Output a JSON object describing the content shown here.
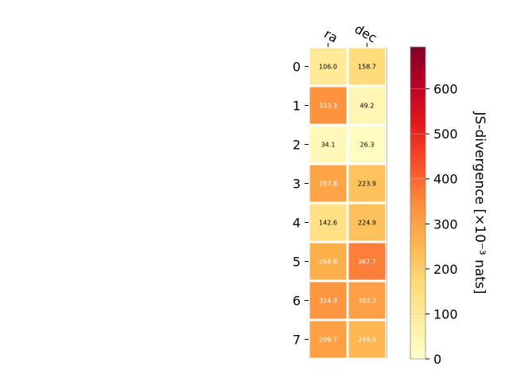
{
  "chart_data": {
    "type": "heatmap",
    "columns": [
      "ra",
      "dec"
    ],
    "rows": [
      "0",
      "1",
      "2",
      "3",
      "4",
      "5",
      "6",
      "7"
    ],
    "values": [
      [
        106.0,
        158.7
      ],
      [
        333.3,
        49.2
      ],
      [
        34.1,
        26.3
      ],
      [
        287.8,
        223.9
      ],
      [
        142.6,
        224.9
      ],
      [
        264.9,
        367.7
      ],
      [
        324.9,
        303.3
      ],
      [
        299.7,
        248.9
      ]
    ],
    "cell_labels": [
      [
        "106.0",
        "158.7"
      ],
      [
        "333.3",
        "49.2"
      ],
      [
        "34.1",
        "26.3"
      ],
      [
        "287.8",
        "223.9"
      ],
      [
        "142.6",
        "224.9"
      ],
      [
        "264.9",
        "367.7"
      ],
      [
        "324.9",
        "303.3"
      ],
      [
        "299.7",
        "248.9"
      ]
    ],
    "colorbar": {
      "label": "JS-divergence [×10⁻³ nats]",
      "range": [
        0,
        693
      ],
      "ticks": [
        0,
        100,
        200,
        300,
        400,
        500,
        600
      ],
      "colormap": "YlOrRd"
    },
    "grid": false
  }
}
